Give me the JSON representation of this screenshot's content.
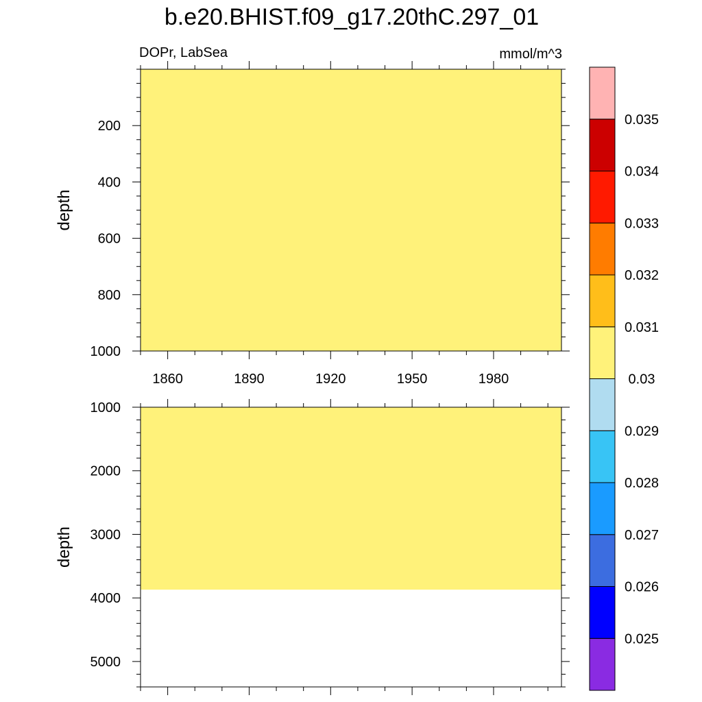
{
  "title": "b.e20.BHIST.f09_g17.20thC.297_01",
  "left_label": "DOPr, LabSea",
  "right_label": "mmol/m^3",
  "chart_data": [
    {
      "type": "heatmap",
      "panel": "upper",
      "xlabel": "",
      "ylabel": "depth",
      "xlim": [
        1850,
        2005
      ],
      "ylim": [
        0,
        1000
      ],
      "x_ticks": [
        1860,
        1890,
        1920,
        1950,
        1980
      ],
      "y_ticks": [
        200,
        400,
        600,
        800,
        1000
      ],
      "regions": [
        {
          "x": [
            1850,
            2005
          ],
          "depth": [
            0,
            1000
          ],
          "value_bin": [
            0.03,
            0.031
          ],
          "color": "#fff27a"
        }
      ]
    },
    {
      "type": "heatmap",
      "panel": "lower",
      "xlabel": "",
      "ylabel": "depth",
      "xlim": [
        1850,
        2005
      ],
      "ylim": [
        1000,
        5400
      ],
      "x_ticks": [
        1860,
        1890,
        1920,
        1950,
        1980
      ],
      "y_ticks": [
        1000,
        2000,
        3000,
        4000,
        5000
      ],
      "regions": [
        {
          "x": [
            1850,
            2005
          ],
          "depth": [
            1000,
            3870
          ],
          "value_bin": [
            0.03,
            0.031
          ],
          "color": "#fff27a"
        }
      ]
    }
  ],
  "colorbar": {
    "levels": [
      "0.025",
      "0.026",
      "0.027",
      "0.028",
      "0.029",
      "0.03",
      "0.031",
      "0.032",
      "0.033",
      "0.034",
      "0.035"
    ],
    "colors": [
      "#8a2be2",
      "#0000ff",
      "#3c6de0",
      "#1a9bff",
      "#38c4f5",
      "#b0dcf0",
      "#fff27a",
      "#ffbe1a",
      "#ff7c00",
      "#ff1a00",
      "#cc0000",
      "#ffb3b3"
    ]
  }
}
